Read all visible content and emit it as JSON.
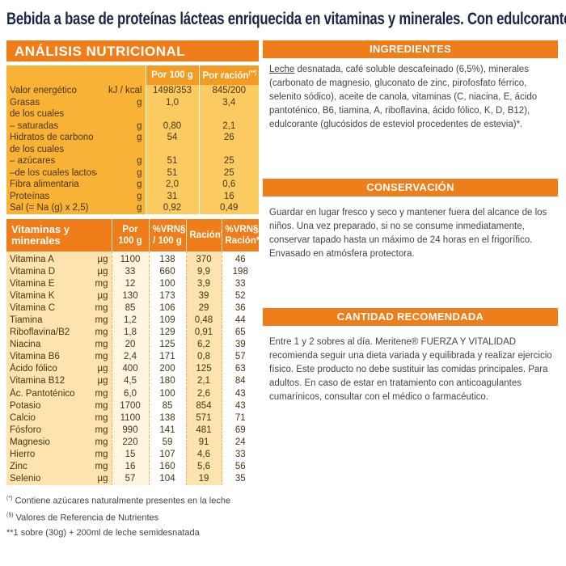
{
  "title": "Bebida a base de proteínas lácteas enriquecida en vitaminas y minerales. Con edulcorante.",
  "nutrition": {
    "heading": "ANÁLISIS NUTRICIONAL",
    "header": [
      "Por 100 g",
      "Por ración"
    ],
    "header_note": "(**)",
    "rows": [
      [
        "Valor energético",
        "kJ / kcal",
        "1498/353",
        "845/200"
      ],
      [
        "Grasas",
        "g",
        "1,0",
        "3,4"
      ],
      [
        "de los cuales"
      ],
      [
        "– saturadas",
        "g",
        "0,80",
        "2,1"
      ],
      [
        "Hidratos de carbono",
        "g",
        "54",
        "26"
      ],
      [
        "de los cuales"
      ],
      [
        "– azúcares",
        "g",
        "51",
        "25"
      ],
      [
        "–de los cuales lactosa",
        "g",
        "51",
        "25"
      ],
      [
        "Fibra alimentaria",
        "g",
        "2,0",
        "0,6"
      ],
      [
        "Proteínas",
        "g",
        "31",
        "16"
      ],
      [
        "Sal (= Na (g) x 2,5)",
        "g",
        "0,92",
        "0,49"
      ]
    ]
  },
  "vitamins": {
    "header": [
      "Vitaminas y minerales",
      "Por 100 g",
      "%VRN§ / 100 g",
      "Ración**",
      "%VRN§/ Ración**"
    ],
    "rows": [
      [
        "Vitamina A",
        "µg",
        "1100",
        "138",
        "370",
        "46"
      ],
      [
        "Vitamina D",
        "µg",
        "33",
        "660",
        "9,9",
        "198"
      ],
      [
        "Vitamina E",
        "mg",
        "12",
        "100",
        "3,9",
        "33"
      ],
      [
        "Vitamina K",
        "µg",
        "130",
        "173",
        "39",
        "52"
      ],
      [
        "Vitamina C",
        "mg",
        "85",
        "106",
        "29",
        "36"
      ],
      [
        "Tiamina",
        "mg",
        "1,2",
        "109",
        "0,48",
        "44"
      ],
      [
        "Riboflavina/B2",
        "mg",
        "1,8",
        "129",
        "0,91",
        "65"
      ],
      [
        "Niacina",
        "mg",
        "20",
        "125",
        "6,2",
        "39"
      ],
      [
        "Vitamina B6",
        "mg",
        "2,4",
        "171",
        "0,8",
        "57"
      ],
      [
        "Ácido fólico",
        "µg",
        "400",
        "200",
        "125",
        "63"
      ],
      [
        "Vitamina B12",
        "µg",
        "4,5",
        "180",
        "2,1",
        "84"
      ],
      [
        "Ác. Pantoténico",
        "mg",
        "6,0",
        "100",
        "2,6",
        "43"
      ],
      [
        "Potasio",
        "mg",
        "1700",
        "85",
        "854",
        "43"
      ],
      [
        "Calcio",
        "mg",
        "1100",
        "138",
        "571",
        "71"
      ],
      [
        "Fósforo",
        "mg",
        "990",
        "141",
        "481",
        "69"
      ],
      [
        "Magnesio",
        "mg",
        "220",
        "59",
        "91",
        "24"
      ],
      [
        "Hierro",
        "mg",
        "15",
        "107",
        "4,6",
        "33"
      ],
      [
        "Zinc",
        "mg",
        "16",
        "160",
        "5,6",
        "56"
      ],
      [
        "Selenio",
        "µg",
        "57",
        "104",
        "19",
        "35"
      ]
    ]
  },
  "footnotes": [
    {
      "mark": "(*)",
      "text": "Contiene azúcares naturalmente presentes en la leche"
    },
    {
      "mark": "(§)",
      "text": "Valores de Referencia de Nutrientes"
    },
    {
      "text": "**1 sobre (30g) + 200ml de leche semidesnatada"
    }
  ],
  "ingredients": {
    "heading": "INGREDIENTES",
    "lead": "Leche",
    "text": " desnatada, café soluble descafeinado (6,5%), minerales (carbonato de magnesio, gluconato de zinc, pirofosfato férrico, selenito sódico), aceite de canola, vitaminas (C, niacina, E, ácido pantoténico, B6, tiamina, A, riboflavina, ácido fólico, K, D, B12), edulcorante (glucósidos de esteviol procedentes de estevia)*."
  },
  "conservation": {
    "heading": "CONSERVACIÓN",
    "text": "Guardar en lugar fresco y seco y mantener fuera del alcance de los niños. Una vez preparado, si no se consume inmediatamente, conservar tapado hasta un máximo de 24 horas en el frigorífico. Envasado en atmósfera protectora."
  },
  "dosage": {
    "heading": "CANTIDAD RECOMENDADA",
    "text": "Entre 1 y 2 sobres al día. Meritene® FUERZA Y VITALIDAD recomienda seguir una dieta variada y equilibrada y realizar ejercicio físico. Este producto no debe sustituir las comidas principales. Para adultos. En caso de estar en tratamiento con anticoagulantes cumarínicos, consultar con el médico o farmacéutico."
  }
}
